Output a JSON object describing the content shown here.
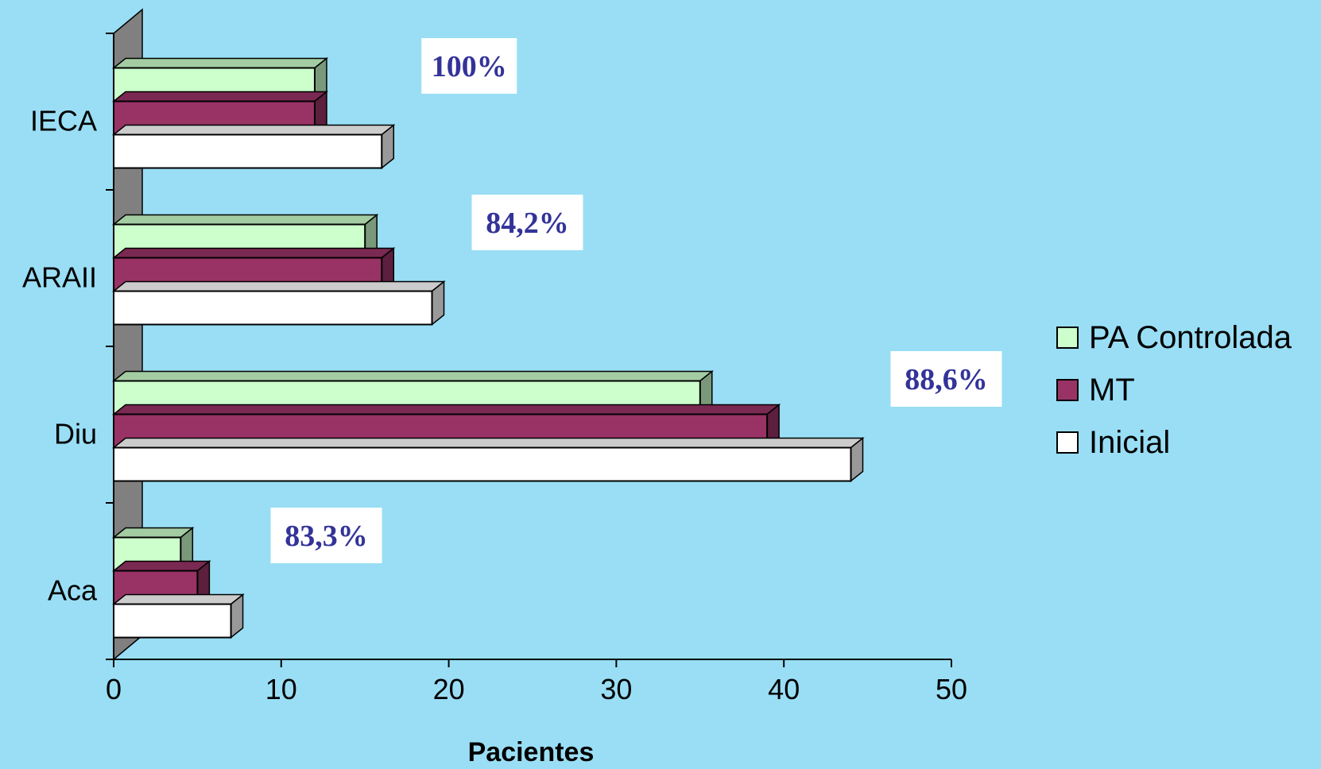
{
  "colors": {
    "background": "#99def5",
    "pa_controlada": "#ccffcc",
    "mt": "#993366",
    "inicial": "#ffffff",
    "wall": "#808080",
    "annotation_text": "#333399"
  },
  "chart_data": {
    "type": "bar",
    "orientation": "horizontal",
    "xlabel": "Pacientes",
    "xlim": [
      0,
      50
    ],
    "xticks": [
      "0",
      "10",
      "20",
      "30",
      "40",
      "50"
    ],
    "categories": [
      "IECA",
      "ARAII",
      "Diu",
      "Aca"
    ],
    "series": [
      {
        "name": "PA Controlada",
        "color": "#ccffcc",
        "values": [
          12,
          15,
          35,
          4
        ]
      },
      {
        "name": "MT",
        "color": "#993366",
        "values": [
          12,
          16,
          39,
          5
        ]
      },
      {
        "name": "Inicial",
        "color": "#ffffff",
        "values": [
          16,
          19,
          44,
          7
        ]
      }
    ],
    "annotations": [
      "100%",
      "84,2%",
      "88,6%",
      "83,3%"
    ],
    "legend": "right",
    "grid": false
  }
}
